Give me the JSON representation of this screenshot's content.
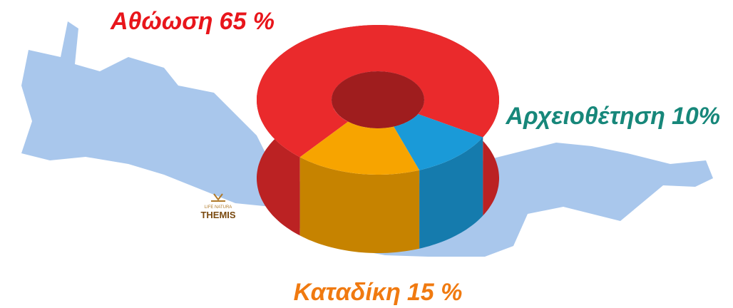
{
  "chart_data": {
    "type": "donut3d",
    "categories": [
      "Αθώωση",
      "Αρχειοθέτηση",
      "Καταδίκη"
    ],
    "values": [
      65,
      10,
      15
    ],
    "value_labels": [
      "65 %",
      "10%",
      "15 %"
    ],
    "colors": [
      "#ea2a2c",
      "#1a9ad8",
      "#f7a400"
    ],
    "label_colors": [
      "#e8151b",
      "#17877a",
      "#f07a10"
    ]
  },
  "logo": {
    "small": "LIFE NATURA",
    "name": "THEMIS"
  }
}
